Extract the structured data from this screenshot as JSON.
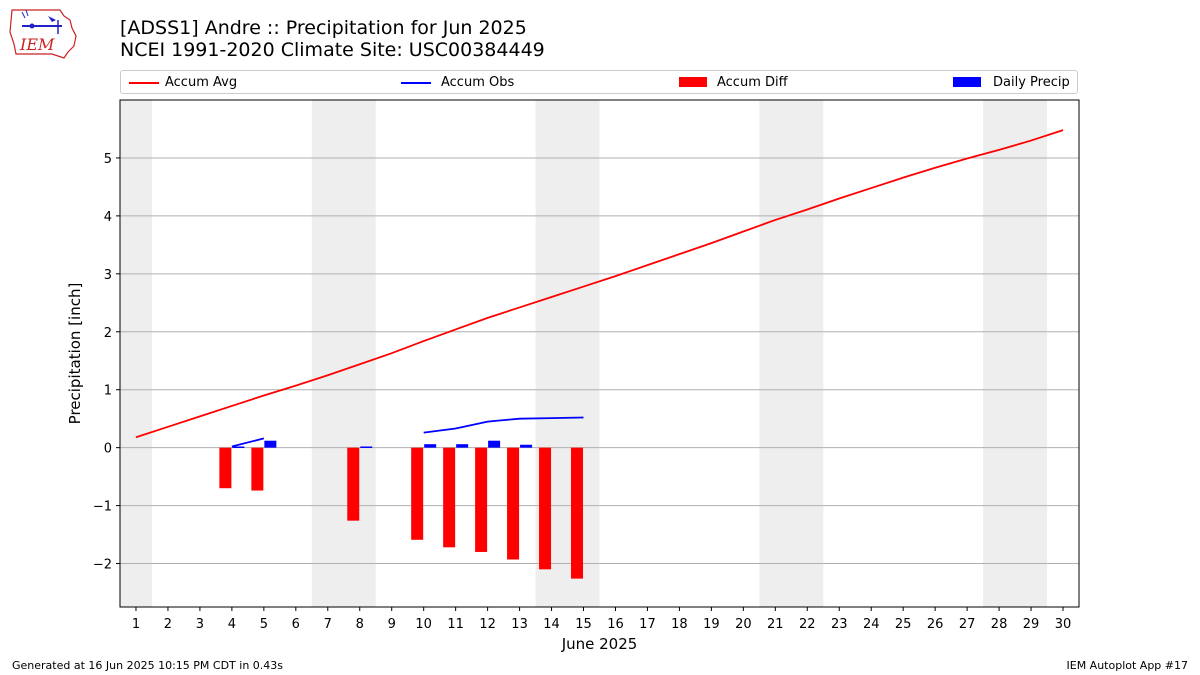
{
  "header": {
    "title_line1": "[ADSS1] Andre :: Precipitation for Jun 2025",
    "title_line2": "NCEI 1991-2020 Climate Site: USC00384449",
    "logo_text": "IEM"
  },
  "footer": {
    "left": "Generated at 16 Jun 2025 10:15 PM CDT in 0.43s",
    "right": "IEM Autoplot App #17"
  },
  "colors": {
    "accum_avg": "#ff0000",
    "accum_obs": "#0000ff",
    "accum_diff": "#ff0000",
    "daily_precip": "#0000ff",
    "weekend_shade": "#eeeeee",
    "grid": "#b0b0b0"
  },
  "chart_data": {
    "type": "bar",
    "xlabel": "June 2025",
    "ylabel": "Precipitation [inch]",
    "xlim": [
      0.5,
      30.5
    ],
    "ylim": [
      -2.75,
      6.0
    ],
    "yticks": [
      -2,
      -1,
      0,
      1,
      2,
      3,
      4,
      5
    ],
    "ytick_labels": [
      "−2",
      "−1",
      "0",
      "1",
      "2",
      "3",
      "4",
      "5"
    ],
    "x": [
      1,
      2,
      3,
      4,
      5,
      6,
      7,
      8,
      9,
      10,
      11,
      12,
      13,
      14,
      15,
      16,
      17,
      18,
      19,
      20,
      21,
      22,
      23,
      24,
      25,
      26,
      27,
      28,
      29,
      30
    ],
    "grid": true,
    "legend_position": "top",
    "weekend_shading": [
      [
        0.5,
        1.5
      ],
      [
        6.5,
        8.5
      ],
      [
        13.5,
        15.5
      ],
      [
        20.5,
        22.5
      ],
      [
        27.5,
        29.5
      ]
    ],
    "series": [
      {
        "name": "Accum Avg",
        "type": "line",
        "x": [
          1,
          2,
          3,
          4,
          5,
          6,
          7,
          8,
          9,
          10,
          11,
          12,
          13,
          14,
          15,
          16,
          17,
          18,
          19,
          20,
          21,
          22,
          23,
          24,
          25,
          26,
          27,
          28,
          29,
          30
        ],
        "values": [
          0.18,
          0.36,
          0.54,
          0.72,
          0.9,
          1.07,
          1.25,
          1.44,
          1.63,
          1.84,
          2.04,
          2.24,
          2.42,
          2.6,
          2.78,
          2.96,
          3.15,
          3.34,
          3.53,
          3.73,
          3.93,
          4.11,
          4.3,
          4.48,
          4.66,
          4.83,
          4.99,
          5.14,
          5.3,
          5.48
        ]
      },
      {
        "name": "Accum Obs",
        "type": "line",
        "segments": [
          {
            "x": [
              4,
              5
            ],
            "values": [
              0.02,
              0.16
            ]
          },
          {
            "x": [
              10,
              11,
              12,
              13,
              14,
              15
            ],
            "values": [
              0.26,
              0.33,
              0.45,
              0.5,
              0.51,
              0.52
            ]
          }
        ]
      },
      {
        "name": "Accum Diff",
        "type": "bar",
        "x": [
          4,
          5,
          8,
          10,
          11,
          12,
          13,
          14,
          15
        ],
        "values": [
          -0.7,
          -0.74,
          -1.26,
          -1.59,
          -1.72,
          -1.8,
          -1.93,
          -2.1,
          -2.26
        ]
      },
      {
        "name": "Daily Precip",
        "type": "bar",
        "x": [
          4,
          5,
          8,
          10,
          11,
          12,
          13
        ],
        "values": [
          0.02,
          0.12,
          0.02,
          0.06,
          0.06,
          0.12,
          0.05
        ]
      }
    ]
  }
}
